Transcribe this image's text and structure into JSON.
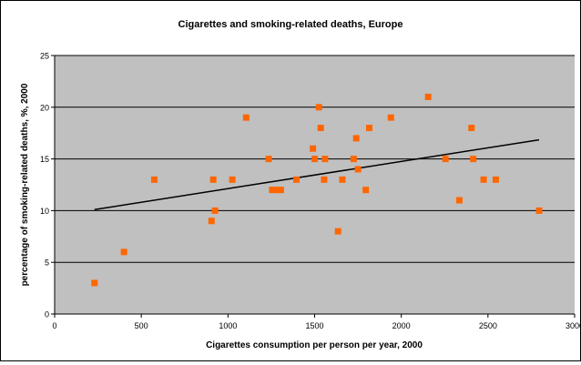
{
  "chart_data": {
    "type": "scatter",
    "title": "Cigarettes and smoking-related deaths, Europe",
    "xlabel": "Cigarettes consumption per person per year, 2000",
    "ylabel": "percentage of smoking-related deaths, %, 2000",
    "xlim": [
      0,
      3000
    ],
    "ylim": [
      0,
      25
    ],
    "xticks": [
      0,
      500,
      1000,
      1500,
      2000,
      2500,
      3000
    ],
    "yticks": [
      0,
      5,
      10,
      15,
      20,
      25
    ],
    "grid": "horizontal",
    "legend": "none",
    "colors": {
      "plot_bg": "#c0c0c0",
      "marker": "#ff6600",
      "trendline": "#000000",
      "gridline": "#000000"
    },
    "points": [
      {
        "x": 230,
        "y": 3
      },
      {
        "x": 400,
        "y": 6
      },
      {
        "x": 575,
        "y": 13
      },
      {
        "x": 905,
        "y": 9
      },
      {
        "x": 915,
        "y": 13
      },
      {
        "x": 925,
        "y": 10
      },
      {
        "x": 1025,
        "y": 13
      },
      {
        "x": 1105,
        "y": 19
      },
      {
        "x": 1235,
        "y": 15
      },
      {
        "x": 1255,
        "y": 12
      },
      {
        "x": 1285,
        "y": 12
      },
      {
        "x": 1305,
        "y": 12
      },
      {
        "x": 1395,
        "y": 13
      },
      {
        "x": 1490,
        "y": 16
      },
      {
        "x": 1500,
        "y": 15
      },
      {
        "x": 1525,
        "y": 20
      },
      {
        "x": 1535,
        "y": 18
      },
      {
        "x": 1555,
        "y": 13
      },
      {
        "x": 1560,
        "y": 15
      },
      {
        "x": 1635,
        "y": 8
      },
      {
        "x": 1660,
        "y": 13
      },
      {
        "x": 1725,
        "y": 15
      },
      {
        "x": 1740,
        "y": 17
      },
      {
        "x": 1750,
        "y": 14
      },
      {
        "x": 1795,
        "y": 12
      },
      {
        "x": 1815,
        "y": 18
      },
      {
        "x": 1940,
        "y": 19
      },
      {
        "x": 2155,
        "y": 21
      },
      {
        "x": 2255,
        "y": 15
      },
      {
        "x": 2335,
        "y": 11
      },
      {
        "x": 2405,
        "y": 18
      },
      {
        "x": 2415,
        "y": 15
      },
      {
        "x": 2475,
        "y": 13
      },
      {
        "x": 2545,
        "y": 13
      },
      {
        "x": 2795,
        "y": 10
      }
    ],
    "trendline": [
      {
        "x": 230,
        "y": 10.1
      },
      {
        "x": 2795,
        "y": 16.85
      }
    ]
  }
}
